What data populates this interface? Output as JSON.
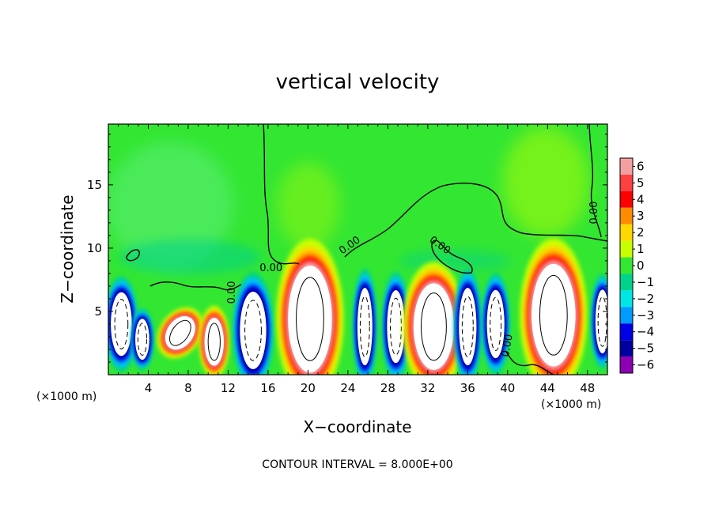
{
  "chart_data": {
    "type": "heatmap",
    "title": "vertical velocity",
    "xlabel": "X−coordinate",
    "ylabel": "Z−coordinate",
    "x_unit_left": "(×1000 m)",
    "x_unit_right": "(×1000 m)",
    "footer": "CONTOUR INTERVAL = 8.000E+00",
    "xlim": [
      0,
      50
    ],
    "ylim": [
      0,
      19.8
    ],
    "x_ticks": [
      4,
      8,
      12,
      16,
      20,
      24,
      28,
      32,
      36,
      40,
      44,
      48
    ],
    "x_tick_labels": [
      "4",
      "8",
      "12",
      "16",
      "20",
      "24",
      "28",
      "32",
      "36",
      "40",
      "44",
      "48"
    ],
    "y_ticks": [
      5,
      10,
      15
    ],
    "y_tick_labels": [
      "5",
      "10",
      "15"
    ],
    "colorbar": {
      "levels": [
        6,
        5,
        4,
        3,
        2,
        1,
        0,
        -1,
        -2,
        -3,
        -4,
        -5,
        -6
      ],
      "labels": [
        "6",
        "5",
        "4",
        "3",
        "2",
        "1",
        "0",
        "−1",
        "−2",
        "−3",
        "−4",
        "−5",
        "−6"
      ],
      "colors": [
        "#f4a0a0",
        "#ff4040",
        "#ff0000",
        "#ff8c00",
        "#ffd700",
        "#c8ff00",
        "#32e632",
        "#00d28c",
        "#00e6e6",
        "#009bff",
        "#0000e6",
        "#0000a0",
        "#8c00b4"
      ]
    },
    "contour_labels": [
      {
        "text": "0.00",
        "x": 12.4,
        "z": 6.5,
        "angle": -90
      },
      {
        "text": "0.00",
        "x": 16.3,
        "z": 8.4,
        "angle": 0
      },
      {
        "text": "0.00",
        "x": 24.2,
        "z": 10.2,
        "angle": -35
      },
      {
        "text": "0.00",
        "x": 33.2,
        "z": 10.2,
        "angle": 35
      },
      {
        "text": "0.00",
        "x": 40.0,
        "z": 2.3,
        "angle": -80
      },
      {
        "text": "0.00",
        "x": 48.7,
        "z": 12.8,
        "angle": -90
      }
    ],
    "cells": [
      {
        "x": 1.3,
        "z": 4.0,
        "w": 2.4,
        "h": 5.6,
        "v": -6
      },
      {
        "x": 3.4,
        "z": 2.8,
        "w": 1.6,
        "h": 3.6,
        "v": -6
      },
      {
        "x": 7.2,
        "z": 3.3,
        "w": 3.0,
        "h": 3.2,
        "v": 6,
        "rot": 35
      },
      {
        "x": 10.6,
        "z": 2.6,
        "w": 2.2,
        "h": 4.2,
        "v": 6
      },
      {
        "x": 14.5,
        "z": 3.5,
        "w": 3.0,
        "h": 6.8,
        "v": -6
      },
      {
        "x": 20.2,
        "z": 4.4,
        "w": 5.0,
        "h": 9.4,
        "v": 6
      },
      {
        "x": 25.7,
        "z": 3.8,
        "w": 1.7,
        "h": 6.8,
        "v": -6
      },
      {
        "x": 28.8,
        "z": 3.8,
        "w": 2.0,
        "h": 6.4,
        "v": -6
      },
      {
        "x": 32.6,
        "z": 3.8,
        "w": 4.6,
        "h": 7.6,
        "v": 6
      },
      {
        "x": 36.0,
        "z": 3.8,
        "w": 2.0,
        "h": 6.8,
        "v": -6
      },
      {
        "x": 38.8,
        "z": 4.0,
        "w": 2.0,
        "h": 6.0,
        "v": -6
      },
      {
        "x": 44.6,
        "z": 4.7,
        "w": 5.0,
        "h": 9.0,
        "v": 6
      },
      {
        "x": 49.5,
        "z": 4.2,
        "w": 1.6,
        "h": 5.6,
        "v": -6
      }
    ]
  }
}
